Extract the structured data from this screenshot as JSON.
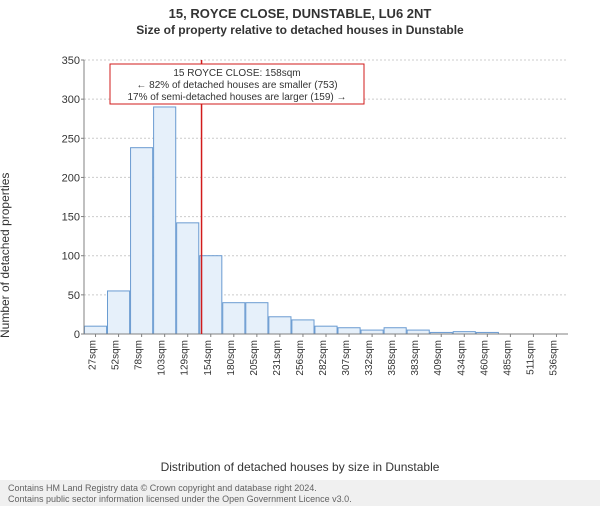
{
  "header": {
    "title": "15, ROYCE CLOSE, DUNSTABLE, LU6 2NT",
    "subtitle": "Size of property relative to detached houses in Dunstable"
  },
  "chart": {
    "type": "histogram",
    "ylabel": "Number of detached properties",
    "xlabel": "Distribution of detached houses by size in Dunstable",
    "ylim": [
      0,
      350
    ],
    "ytick_step": 50,
    "yticks": [
      0,
      50,
      100,
      150,
      200,
      250,
      300,
      350
    ],
    "xticks": [
      "27sqm",
      "52sqm",
      "78sqm",
      "103sqm",
      "129sqm",
      "154sqm",
      "180sqm",
      "205sqm",
      "231sqm",
      "256sqm",
      "282sqm",
      "307sqm",
      "332sqm",
      "358sqm",
      "383sqm",
      "409sqm",
      "434sqm",
      "460sqm",
      "485sqm",
      "511sqm",
      "536sqm"
    ],
    "bars": [
      10,
      55,
      238,
      290,
      142,
      100,
      40,
      40,
      22,
      18,
      10,
      8,
      5,
      8,
      5,
      2,
      3,
      2,
      0,
      0,
      0
    ],
    "bar_fill": "#e6f0fa",
    "bar_stroke": "#6a9bd1",
    "bar_width_ratio": 0.96,
    "grid_color": "#cccccc",
    "axis_color": "#808080",
    "background_color": "#ffffff",
    "marker": {
      "position_index": 5.1,
      "color": "#d11b1b"
    },
    "annotation": {
      "line1": "15 ROYCE CLOSE: 158sqm",
      "line2": "← 82% of detached houses are smaller (753)",
      "line3": "17% of semi-detached houses are larger (159) →",
      "box_stroke": "#d11b1b",
      "box_fill": "#ffffff",
      "text_color": "#333333",
      "fontsize": 10
    },
    "title_fontsize": 13,
    "label_fontsize": 12,
    "tick_fontsize": 10
  },
  "footer": {
    "line1": "Contains HM Land Registry data © Crown copyright and database right 2024.",
    "line2": "Contains public sector information licensed under the Open Government Licence v3.0."
  }
}
